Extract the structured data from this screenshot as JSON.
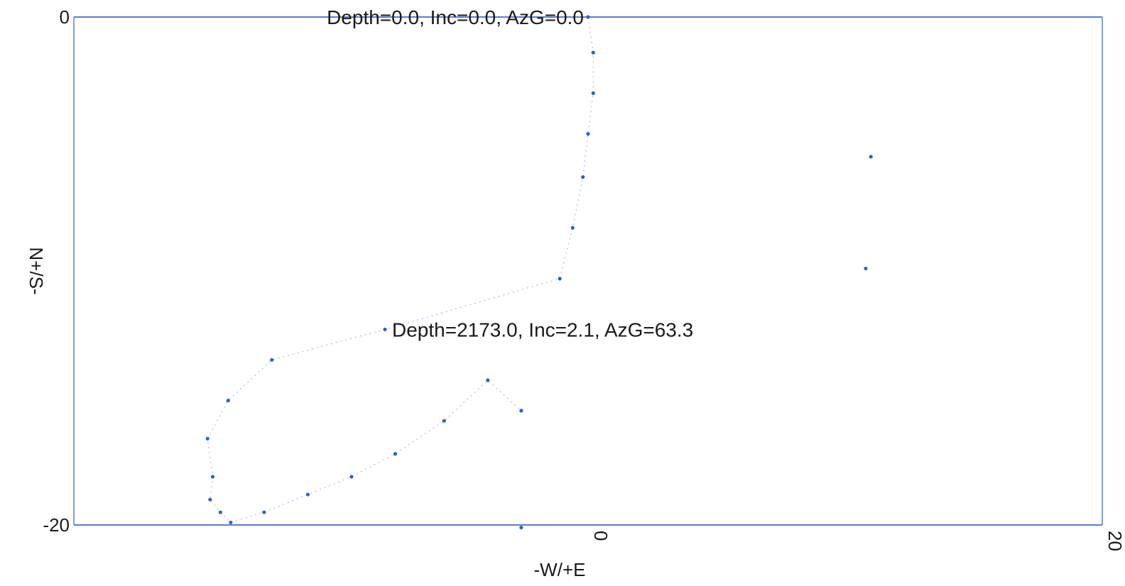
{
  "chart_data": {
    "type": "scatter",
    "title": "",
    "xlabel": "-W/+E",
    "ylabel": "N+/S-",
    "xlim": [
      -20,
      20
    ],
    "ylim": [
      -20,
      0
    ],
    "xticks": [
      "0",
      "20"
    ],
    "yticks": [
      "0",
      "-20"
    ],
    "grid": false,
    "colors": {
      "frame": "#5a7fd0",
      "points": "#3a5fb5",
      "trajectory": "#6c8ad6"
    },
    "series": [
      {
        "points": [
          {
            "x": 0.0,
            "y": 0.0
          },
          {
            "x": 0.2,
            "y": -1.4
          },
          {
            "x": 0.2,
            "y": -3.0
          },
          {
            "x": 0.0,
            "y": -4.6
          },
          {
            "x": -0.2,
            "y": -6.3
          },
          {
            "x": -0.6,
            "y": -8.3
          },
          {
            "x": -1.1,
            "y": -10.3
          },
          {
            "x": -7.9,
            "y": -12.3
          },
          {
            "x": -12.3,
            "y": -13.5
          },
          {
            "x": -14.0,
            "y": -15.1
          },
          {
            "x": -14.8,
            "y": -16.6
          },
          {
            "x": -14.6,
            "y": -18.1
          },
          {
            "x": -14.7,
            "y": -19.0
          },
          {
            "x": -14.3,
            "y": -19.5
          },
          {
            "x": -13.9,
            "y": -19.9
          },
          {
            "x": -12.6,
            "y": -19.5
          },
          {
            "x": -10.9,
            "y": -18.8
          },
          {
            "x": -9.2,
            "y": -18.1
          },
          {
            "x": -7.5,
            "y": -17.2
          },
          {
            "x": -5.6,
            "y": -15.9
          },
          {
            "x": -3.9,
            "y": -14.3
          },
          {
            "x": -2.6,
            "y": -15.5
          },
          {
            "x": -2.6,
            "y": -20.1
          },
          {
            "x": 11.0,
            "y": -5.5
          },
          {
            "x": 10.8,
            "y": -9.9
          }
        ]
      }
    ],
    "annotations": [
      {
        "text": "Depth=0.0, Inc=0.0, AzG=0.0",
        "x": 0.0,
        "y": 0.0
      },
      {
        "text": "Depth=2173.0, Inc=2.1, AzG=63.3",
        "x": -7.9,
        "y": -12.3
      }
    ]
  }
}
